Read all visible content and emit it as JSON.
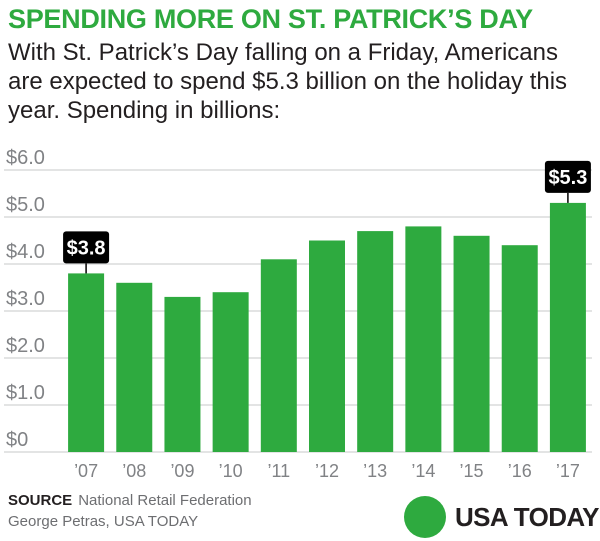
{
  "header": {
    "title": "SPENDING MORE ON ST. PATRICK’S DAY",
    "subtitle": "With St. Patrick’s Day falling on a Friday, Americans are expected to spend $5.3 billion on the holiday this year. Spending in billions:"
  },
  "colors": {
    "title": "#2eaa3f",
    "bar": "#2eaa3f",
    "callout_bg": "#000000",
    "callout_text": "#ffffff",
    "axis_text": "#808285",
    "grid": "#c7c8ca",
    "brand_dot": "#2eaa3f"
  },
  "chart_data": {
    "type": "bar",
    "title": "",
    "xlabel": "",
    "ylabel": "",
    "categories": [
      "’07",
      "’08",
      "’09",
      "’10",
      "’11",
      "’12",
      "’13",
      "’14",
      "’15",
      "’16",
      "’17"
    ],
    "values": [
      3.8,
      3.6,
      3.3,
      3.4,
      4.1,
      4.5,
      4.7,
      4.8,
      4.6,
      4.4,
      5.3
    ],
    "ylim": [
      0,
      6
    ],
    "yticks": [
      0,
      1,
      2,
      3,
      4,
      5,
      6
    ],
    "ytick_labels": [
      "$0",
      "$1.0",
      "$2.0",
      "$3.0",
      "$4.0",
      "$5.0",
      "$6.0"
    ],
    "grid": "horizontal",
    "legend": "none",
    "callouts": [
      {
        "index": 0,
        "label": "$3.8"
      },
      {
        "index": 10,
        "label": "$5.3"
      }
    ]
  },
  "footer": {
    "source_label": "SOURCE",
    "source": "National Retail Federation",
    "credit": "George Petras, USA TODAY"
  },
  "brand": {
    "name": "USA TODAY"
  }
}
